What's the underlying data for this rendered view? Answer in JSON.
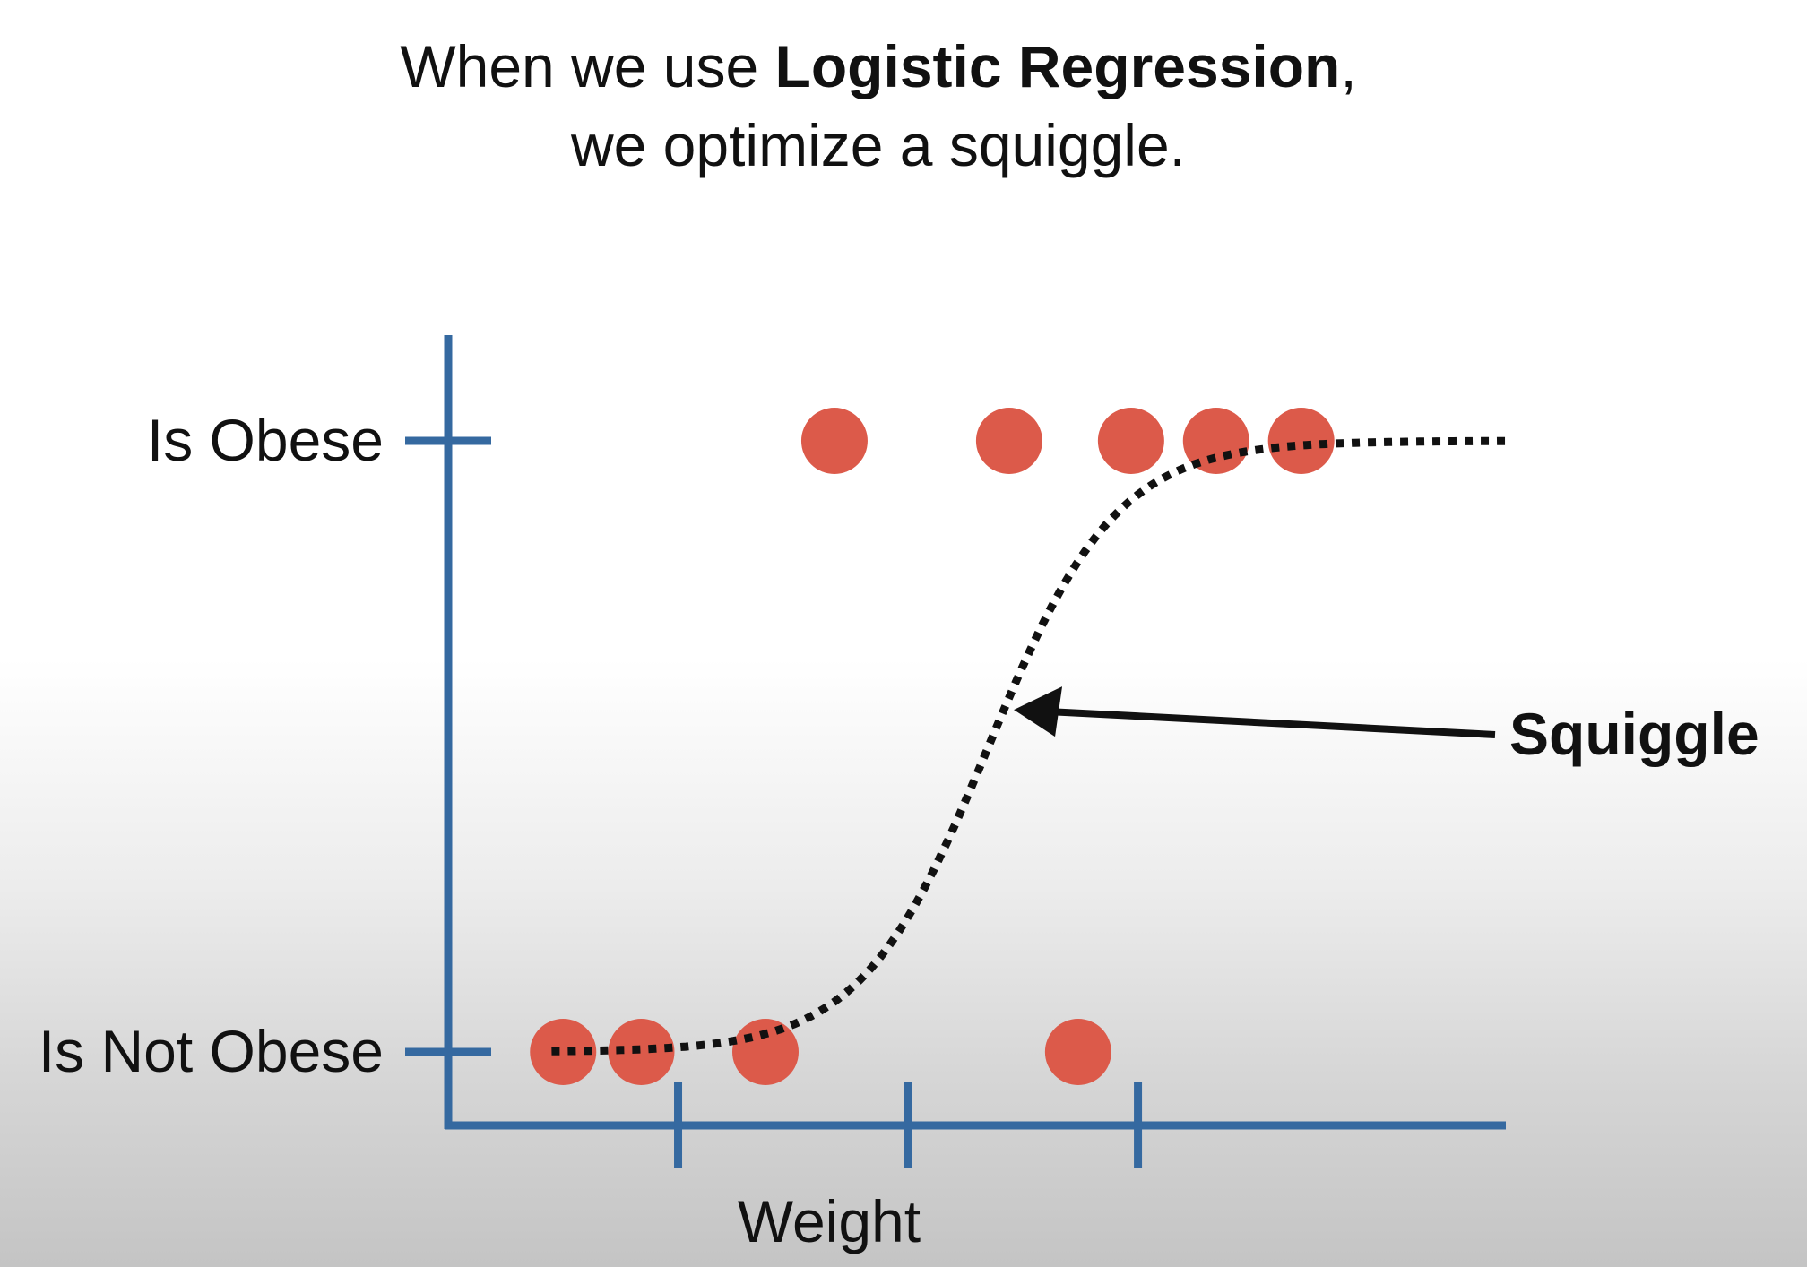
{
  "slide": {
    "title_line1_prefix": "When we use ",
    "title_line1_bold": "Logistic Regression",
    "title_line1_suffix": ",",
    "title_line2": "we optimize a squiggle."
  },
  "colors": {
    "axis": "#3569a0",
    "point": "#dc5a4a",
    "curve": "#111111",
    "text": "#111111"
  },
  "chart_data": {
    "type": "scatter",
    "xlabel": "Weight",
    "ylabel": "",
    "y_categories": [
      "Is Not Obese",
      "Is Obese"
    ],
    "xlim": [
      0,
      4.6
    ],
    "ylim": [
      0,
      1
    ],
    "x_ticks": [
      1,
      2,
      3
    ],
    "points": [
      {
        "x": 0.5,
        "y": 0
      },
      {
        "x": 0.84,
        "y": 0
      },
      {
        "x": 1.38,
        "y": 0
      },
      {
        "x": 2.74,
        "y": 0
      },
      {
        "x": 1.68,
        "y": 1
      },
      {
        "x": 2.44,
        "y": 1
      },
      {
        "x": 2.97,
        "y": 1
      },
      {
        "x": 3.34,
        "y": 1
      },
      {
        "x": 3.71,
        "y": 1
      }
    ],
    "curve": {
      "style": "dotted",
      "x_start": 0.45,
      "x_end": 4.6,
      "midpoint": 2.35,
      "steepness": 3.6
    },
    "annotations": [
      {
        "text": "Squiggle",
        "points_to_x": 2.46,
        "points_to_y": 0.56
      }
    ]
  }
}
